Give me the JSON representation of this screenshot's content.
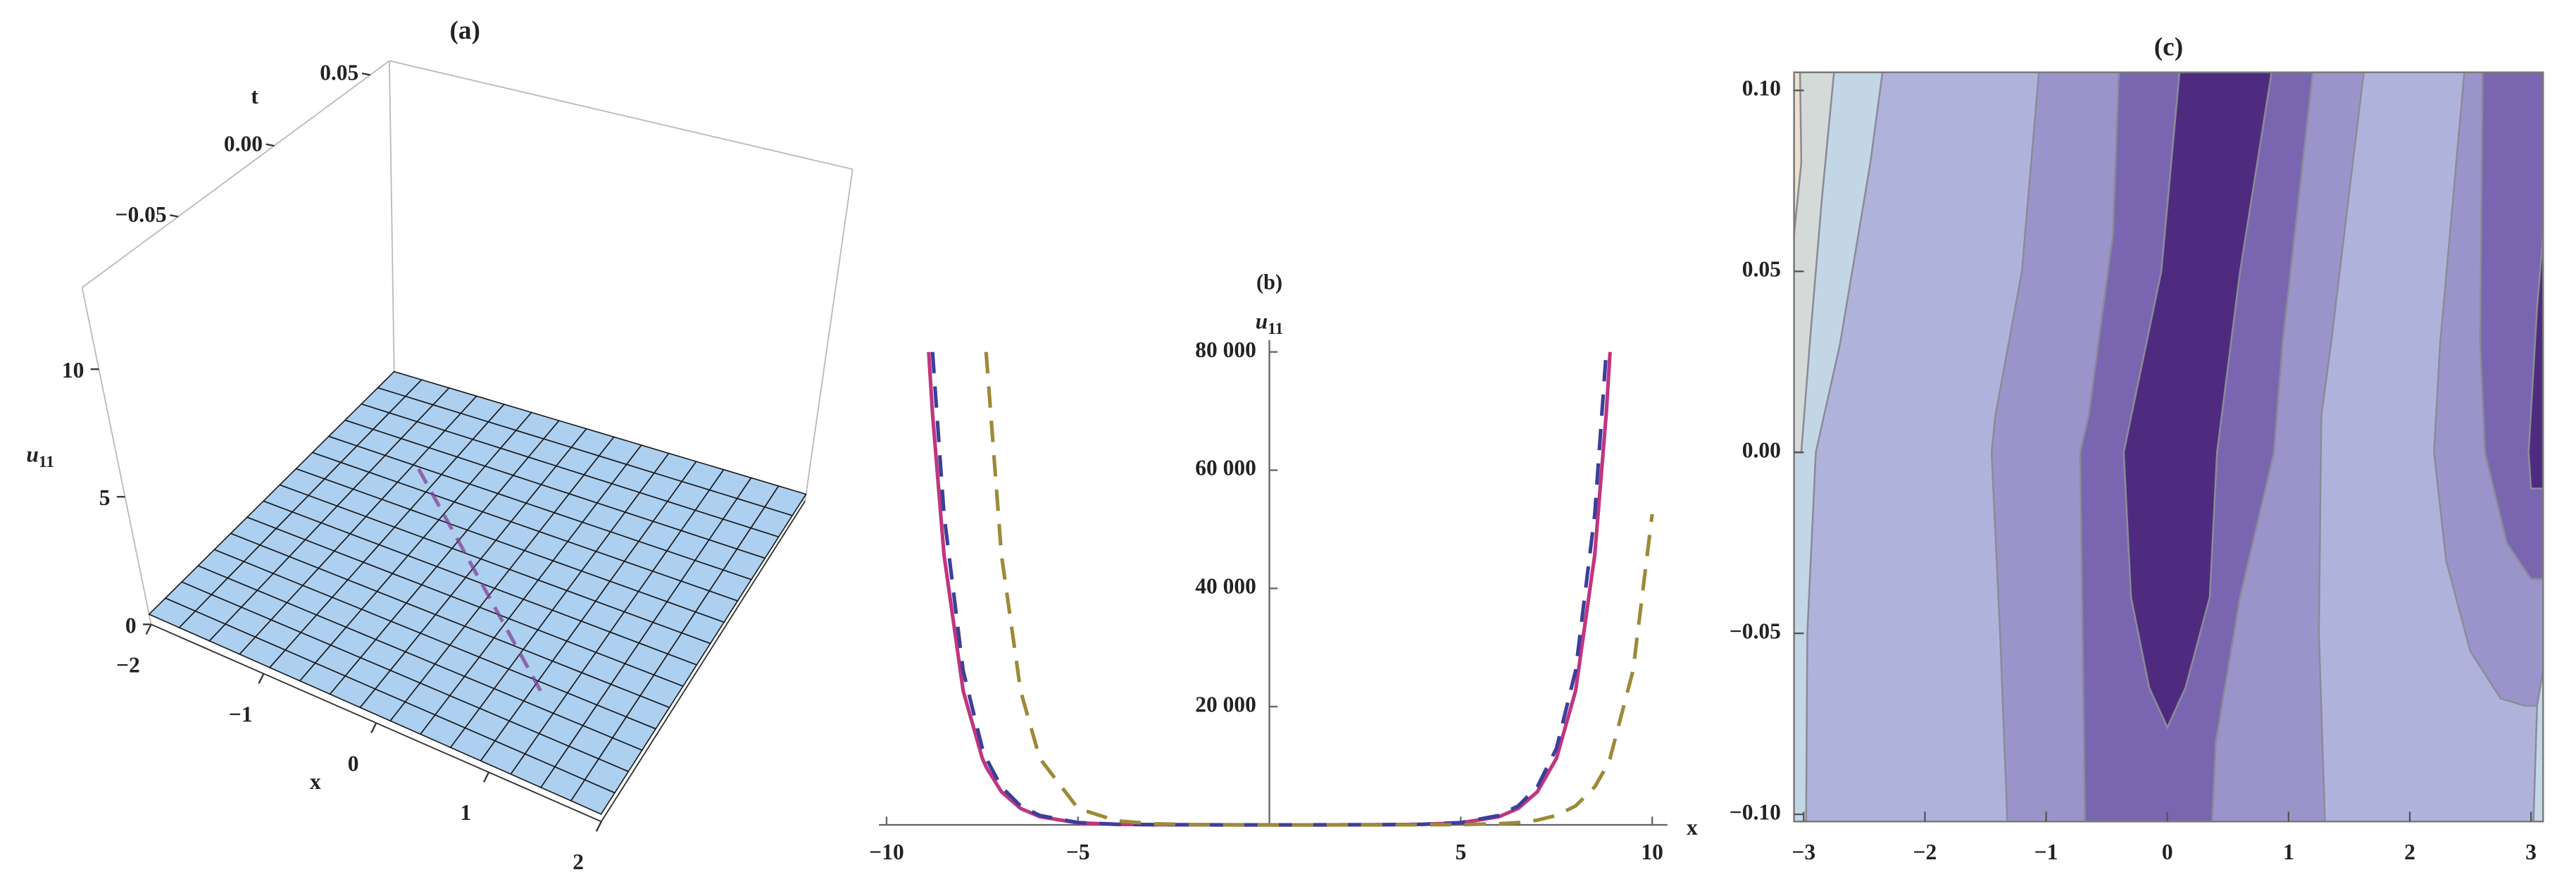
{
  "chart_data": [
    {
      "type": "surface3d",
      "title": "(a)",
      "xlabel": "x",
      "ylabel": "t",
      "zlabel": "u",
      "zlabel_sub": "11",
      "xlim": [
        -2,
        2
      ],
      "xticks": [
        {
          "value": -2,
          "label": "−2"
        },
        {
          "value": -1,
          "label": "−1"
        },
        0,
        1,
        2
      ],
      "ylim": [
        -0.1,
        0.06
      ],
      "yticks": [
        {
          "value": -0.05,
          "label": "−0.05"
        },
        {
          "value": 0,
          "label": "0.00"
        },
        {
          "value": 0.05,
          "label": "0.05"
        }
      ],
      "zlim": [
        0,
        13.2
      ],
      "zticks": [
        0,
        5,
        10
      ],
      "surface_color": "#a9cdf0"
    },
    {
      "type": "line",
      "title": "(b)",
      "xlabel": "x",
      "ylabel": "u",
      "ylabel_sub": "11",
      "xlim": [
        -10.2,
        10.4
      ],
      "xticks": [
        {
          "value": -10,
          "label": "−10"
        },
        {
          "value": -5,
          "label": "−5"
        },
        5,
        10
      ],
      "ylim": [
        0,
        82000
      ],
      "yticks": [
        {
          "value": 20000,
          "label": "20 000"
        },
        {
          "value": 40000,
          "label": "40 000"
        },
        {
          "value": 60000,
          "label": "60 000"
        },
        {
          "value": 80000,
          "label": "80 000"
        }
      ],
      "x": [
        -8.9,
        -8.8,
        -8.5,
        -8,
        -7.5,
        -7.4,
        -7,
        -6.5,
        -6,
        -5,
        -4,
        -3,
        -2,
        -1,
        0,
        1,
        2,
        3,
        4,
        5,
        6,
        6.5,
        7,
        7.5,
        8,
        8.5,
        8.8,
        8.9,
        9.5,
        10
      ],
      "series": [
        {
          "color": "#c0357f",
          "dashed": false,
          "values": [
            80000,
            69550,
            45700,
            22700,
            11270,
            9800,
            5590,
            2780,
            1380,
            340,
            84,
            21,
            5,
            1,
            0,
            1,
            5,
            21,
            84,
            340,
            1380,
            2780,
            5590,
            11270,
            22700,
            45700,
            69550,
            80000,
            null,
            null
          ]
        },
        {
          "color": "#3b3f9c",
          "dashed": true,
          "values": [
            null,
            80000,
            52560,
            26100,
            12960,
            11270,
            6430,
            3200,
            1590,
            390,
            97,
            24,
            6,
            1,
            0,
            1,
            6,
            24,
            97,
            390,
            1590,
            3200,
            6430,
            12960,
            26100,
            52560,
            80000,
            null,
            null,
            null
          ]
        },
        {
          "color": "#9c8a38",
          "dashed": true,
          "values": [
            null,
            null,
            null,
            null,
            null,
            80000,
            45700,
            22700,
            11270,
            2780,
            686,
            169,
            42,
            10,
            3,
            1,
            1,
            3,
            12,
            48,
            195,
            390,
            790,
            1590,
            3200,
            6430,
            9800,
            11270,
            26100,
            52560
          ]
        }
      ]
    },
    {
      "type": "contour",
      "title": "(c)",
      "xlim": [
        -3.08,
        3.1
      ],
      "xticks": [
        {
          "value": -3,
          "label": "−3"
        },
        {
          "value": -2,
          "label": "−2"
        },
        {
          "value": -1,
          "label": "−1"
        },
        0,
        1,
        2,
        3
      ],
      "ylim": [
        -0.102,
        0.105
      ],
      "yticks": [
        {
          "value": -0.1,
          "label": "−0.10"
        },
        {
          "value": -0.05,
          "label": "−0.05"
        },
        {
          "value": 0,
          "label": "0.00"
        },
        {
          "value": 0.05,
          "label": "0.05"
        },
        {
          "value": 0.1,
          "label": "0.10"
        }
      ],
      "background": "#afb3dc",
      "regions": [
        {
          "color": "#c3d6e6",
          "x": [
            -3.08,
            -2.98,
            -2.97,
            -2.9,
            -2.7,
            -2.45,
            -2.35,
            -3.08
          ],
          "y": [
            -0.102,
            -0.102,
            -0.05,
            0.0,
            0.03,
            0.08,
            0.105,
            0.105
          ]
        },
        {
          "color": "#d3dad8",
          "x": [
            -3.08,
            -3.02,
            -2.95,
            -2.85,
            -2.75,
            -3.08
          ],
          "y": [
            0.0,
            0.0,
            0.03,
            0.07,
            0.105,
            0.105
          ]
        },
        {
          "color": "#ede0cc",
          "x": [
            -3.08,
            -3.02,
            -3.03,
            -3.08
          ],
          "y": [
            0.06,
            0.08,
            0.105,
            0.105
          ]
        },
        {
          "color": "#9b94cb",
          "x": [
            -1.32,
            -1.38,
            -1.45,
            -1.42,
            -1.2,
            -1.06,
            1.62,
            1.35,
            1.27,
            1.25,
            1.3
          ],
          "y": [
            -0.102,
            -0.05,
            0.0,
            0.01,
            0.05,
            0.105,
            0.105,
            0.03,
            0.01,
            -0.05,
            -0.102
          ]
        },
        {
          "color": "#7a66b0",
          "x": [
            -0.68,
            -0.7,
            -0.72,
            -0.65,
            -0.45,
            -0.4,
            1.2,
            0.95,
            0.88,
            0.6,
            0.4,
            0.37
          ],
          "y": [
            -0.102,
            -0.05,
            0.0,
            0.01,
            0.06,
            0.105,
            0.105,
            0.03,
            0.0,
            -0.04,
            -0.08,
            -0.102
          ]
        },
        {
          "color": "#4f2b80",
          "x": [
            0.1,
            -0.05,
            -0.36,
            -0.3,
            -0.15,
            0,
            0.15,
            0.35,
            0.41,
            0.6,
            0.86
          ],
          "y": [
            0.105,
            0.05,
            0.0,
            -0.04,
            -0.065,
            -0.076,
            -0.065,
            -0.04,
            0.0,
            0.05,
            0.105
          ]
        },
        {
          "color": "#9b94cb",
          "x": [
            2.45,
            2.25,
            2.2,
            2.3,
            2.5,
            2.75,
            2.95,
            3.1,
            3.1
          ],
          "y": [
            0.105,
            0.03,
            0.0,
            -0.03,
            -0.055,
            -0.068,
            -0.07,
            -0.07,
            0.105
          ]
        },
        {
          "color": "#7a66b0",
          "x": [
            2.6,
            2.58,
            2.62,
            2.8,
            3.0,
            3.1,
            3.1
          ],
          "y": [
            0.105,
            0.03,
            0.0,
            -0.025,
            -0.035,
            -0.035,
            0.105
          ]
        },
        {
          "color": "#4f2b80",
          "x": [
            3.05,
            2.98,
            3.0,
            3.1,
            3.1
          ],
          "y": [
            0.04,
            0.0,
            -0.01,
            -0.01,
            0.06
          ]
        },
        {
          "color": "#c3d6e6",
          "x": [
            3.02,
            3.05,
            3.1,
            3.1
          ],
          "y": [
            -0.102,
            -0.07,
            -0.06,
            -0.102
          ]
        }
      ]
    }
  ]
}
